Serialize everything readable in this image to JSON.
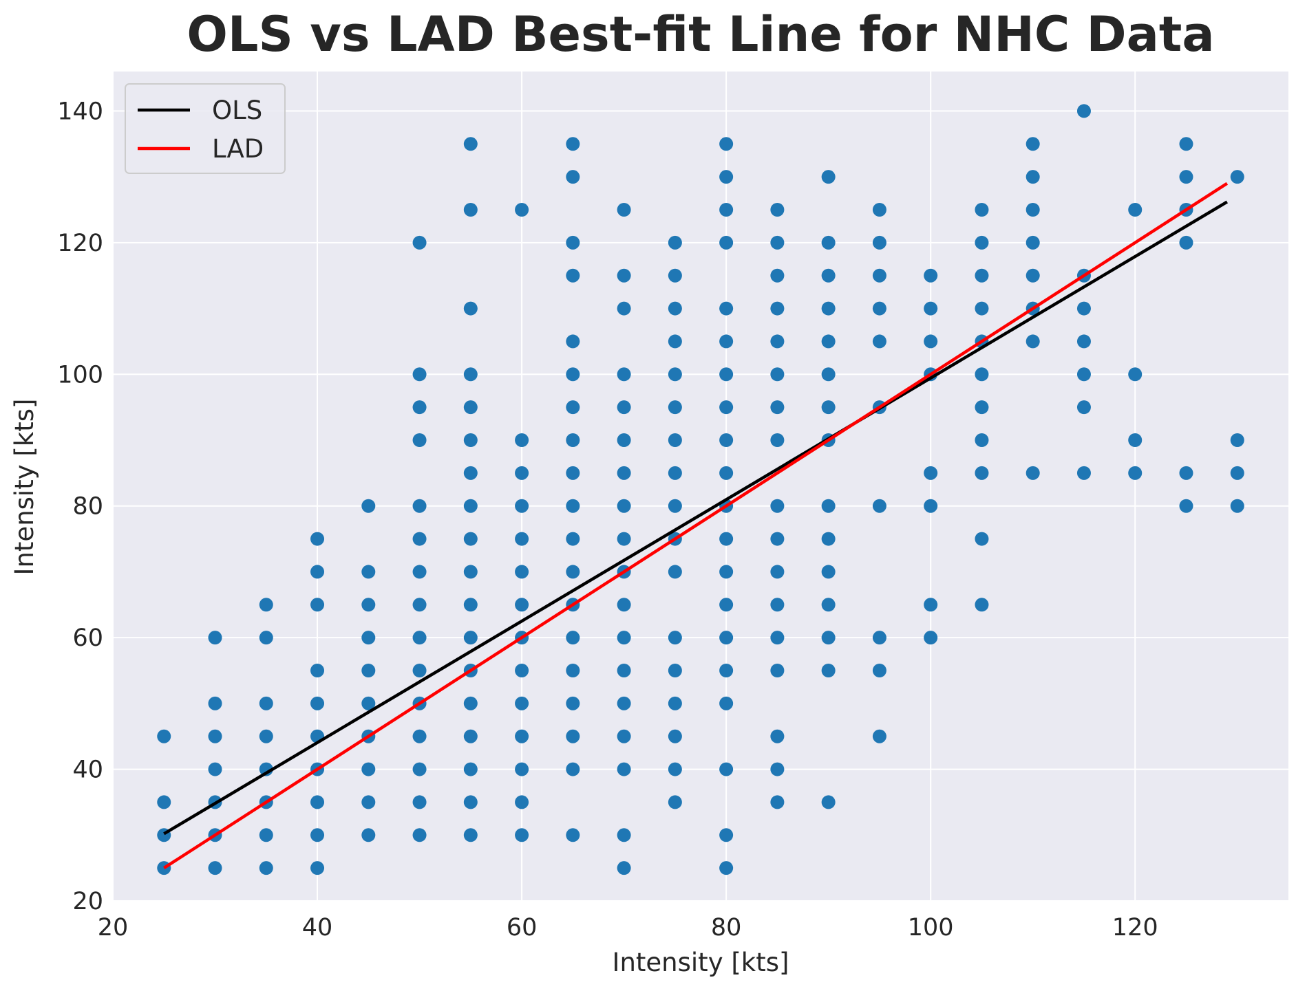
{
  "chart_data": {
    "type": "scatter",
    "title": "OLS vs LAD Best-fit Line for NHC Data",
    "xlabel": "Intensity [kts]",
    "ylabel": "Intensity [kts]",
    "xlim": [
      20,
      135
    ],
    "ylim": [
      20,
      146
    ],
    "x_ticks": [
      20,
      40,
      60,
      80,
      100,
      120
    ],
    "y_ticks": [
      20,
      40,
      60,
      80,
      100,
      120,
      140
    ],
    "grid": true,
    "legend_position": "top-left",
    "colors": {
      "background": "#eaeaf2",
      "grid": "#ffffff",
      "points": "#1f77b4",
      "ols": "#000000",
      "lad": "#ff0000"
    },
    "lines": [
      {
        "name": "OLS",
        "x": [
          25,
          129
        ],
        "y": [
          30.2,
          126.2
        ]
      },
      {
        "name": "LAD",
        "x": [
          25,
          129
        ],
        "y": [
          25,
          129
        ]
      }
    ],
    "points": [
      [
        25,
        25
      ],
      [
        25,
        30
      ],
      [
        25,
        35
      ],
      [
        25,
        45
      ],
      [
        30,
        25
      ],
      [
        30,
        30
      ],
      [
        30,
        35
      ],
      [
        30,
        40
      ],
      [
        30,
        45
      ],
      [
        30,
        50
      ],
      [
        30,
        60
      ],
      [
        35,
        25
      ],
      [
        35,
        30
      ],
      [
        35,
        35
      ],
      [
        35,
        40
      ],
      [
        35,
        45
      ],
      [
        35,
        50
      ],
      [
        35,
        60
      ],
      [
        35,
        65
      ],
      [
        40,
        25
      ],
      [
        40,
        30
      ],
      [
        40,
        35
      ],
      [
        40,
        40
      ],
      [
        40,
        45
      ],
      [
        40,
        50
      ],
      [
        40,
        55
      ],
      [
        40,
        65
      ],
      [
        40,
        70
      ],
      [
        40,
        75
      ],
      [
        45,
        30
      ],
      [
        45,
        35
      ],
      [
        45,
        40
      ],
      [
        45,
        45
      ],
      [
        45,
        50
      ],
      [
        45,
        55
      ],
      [
        45,
        60
      ],
      [
        45,
        65
      ],
      [
        45,
        70
      ],
      [
        45,
        80
      ],
      [
        50,
        30
      ],
      [
        50,
        35
      ],
      [
        50,
        40
      ],
      [
        50,
        45
      ],
      [
        50,
        50
      ],
      [
        50,
        55
      ],
      [
        50,
        60
      ],
      [
        50,
        65
      ],
      [
        50,
        70
      ],
      [
        50,
        75
      ],
      [
        50,
        80
      ],
      [
        50,
        90
      ],
      [
        50,
        95
      ],
      [
        50,
        100
      ],
      [
        50,
        120
      ],
      [
        55,
        30
      ],
      [
        55,
        35
      ],
      [
        55,
        40
      ],
      [
        55,
        45
      ],
      [
        55,
        50
      ],
      [
        55,
        55
      ],
      [
        55,
        60
      ],
      [
        55,
        65
      ],
      [
        55,
        70
      ],
      [
        55,
        75
      ],
      [
        55,
        80
      ],
      [
        55,
        85
      ],
      [
        55,
        90
      ],
      [
        55,
        95
      ],
      [
        55,
        100
      ],
      [
        55,
        110
      ],
      [
        55,
        125
      ],
      [
        55,
        135
      ],
      [
        60,
        30
      ],
      [
        60,
        35
      ],
      [
        60,
        40
      ],
      [
        60,
        45
      ],
      [
        60,
        50
      ],
      [
        60,
        55
      ],
      [
        60,
        60
      ],
      [
        60,
        65
      ],
      [
        60,
        70
      ],
      [
        60,
        75
      ],
      [
        60,
        80
      ],
      [
        60,
        85
      ],
      [
        60,
        90
      ],
      [
        60,
        125
      ],
      [
        65,
        30
      ],
      [
        65,
        40
      ],
      [
        65,
        45
      ],
      [
        65,
        50
      ],
      [
        65,
        55
      ],
      [
        65,
        60
      ],
      [
        65,
        65
      ],
      [
        65,
        70
      ],
      [
        65,
        75
      ],
      [
        65,
        80
      ],
      [
        65,
        85
      ],
      [
        65,
        90
      ],
      [
        65,
        95
      ],
      [
        65,
        100
      ],
      [
        65,
        105
      ],
      [
        65,
        115
      ],
      [
        65,
        120
      ],
      [
        65,
        130
      ],
      [
        65,
        135
      ],
      [
        70,
        25
      ],
      [
        70,
        30
      ],
      [
        70,
        40
      ],
      [
        70,
        45
      ],
      [
        70,
        50
      ],
      [
        70,
        55
      ],
      [
        70,
        60
      ],
      [
        70,
        65
      ],
      [
        70,
        70
      ],
      [
        70,
        75
      ],
      [
        70,
        80
      ],
      [
        70,
        85
      ],
      [
        70,
        90
      ],
      [
        70,
        95
      ],
      [
        70,
        100
      ],
      [
        70,
        110
      ],
      [
        70,
        115
      ],
      [
        70,
        125
      ],
      [
        75,
        35
      ],
      [
        75,
        40
      ],
      [
        75,
        45
      ],
      [
        75,
        50
      ],
      [
        75,
        55
      ],
      [
        75,
        60
      ],
      [
        75,
        70
      ],
      [
        75,
        75
      ],
      [
        75,
        80
      ],
      [
        75,
        85
      ],
      [
        75,
        90
      ],
      [
        75,
        95
      ],
      [
        75,
        100
      ],
      [
        75,
        105
      ],
      [
        75,
        110
      ],
      [
        75,
        115
      ],
      [
        75,
        120
      ],
      [
        80,
        25
      ],
      [
        80,
        30
      ],
      [
        80,
        40
      ],
      [
        80,
        50
      ],
      [
        80,
        55
      ],
      [
        80,
        60
      ],
      [
        80,
        65
      ],
      [
        80,
        70
      ],
      [
        80,
        75
      ],
      [
        80,
        80
      ],
      [
        80,
        85
      ],
      [
        80,
        90
      ],
      [
        80,
        95
      ],
      [
        80,
        100
      ],
      [
        80,
        105
      ],
      [
        80,
        110
      ],
      [
        80,
        120
      ],
      [
        80,
        125
      ],
      [
        80,
        130
      ],
      [
        80,
        135
      ],
      [
        85,
        35
      ],
      [
        85,
        40
      ],
      [
        85,
        45
      ],
      [
        85,
        55
      ],
      [
        85,
        60
      ],
      [
        85,
        65
      ],
      [
        85,
        70
      ],
      [
        85,
        75
      ],
      [
        85,
        80
      ],
      [
        85,
        90
      ],
      [
        85,
        95
      ],
      [
        85,
        100
      ],
      [
        85,
        105
      ],
      [
        85,
        110
      ],
      [
        85,
        115
      ],
      [
        85,
        120
      ],
      [
        85,
        125
      ],
      [
        90,
        35
      ],
      [
        90,
        55
      ],
      [
        90,
        60
      ],
      [
        90,
        65
      ],
      [
        90,
        70
      ],
      [
        90,
        75
      ],
      [
        90,
        80
      ],
      [
        90,
        90
      ],
      [
        90,
        95
      ],
      [
        90,
        100
      ],
      [
        90,
        105
      ],
      [
        90,
        110
      ],
      [
        90,
        115
      ],
      [
        90,
        120
      ],
      [
        90,
        130
      ],
      [
        95,
        45
      ],
      [
        95,
        55
      ],
      [
        95,
        60
      ],
      [
        95,
        80
      ],
      [
        95,
        95
      ],
      [
        95,
        105
      ],
      [
        95,
        110
      ],
      [
        95,
        115
      ],
      [
        95,
        120
      ],
      [
        95,
        125
      ],
      [
        100,
        60
      ],
      [
        100,
        65
      ],
      [
        100,
        80
      ],
      [
        100,
        85
      ],
      [
        100,
        100
      ],
      [
        100,
        105
      ],
      [
        100,
        110
      ],
      [
        100,
        115
      ],
      [
        105,
        65
      ],
      [
        105,
        75
      ],
      [
        105,
        85
      ],
      [
        105,
        90
      ],
      [
        105,
        95
      ],
      [
        105,
        100
      ],
      [
        105,
        105
      ],
      [
        105,
        110
      ],
      [
        105,
        115
      ],
      [
        105,
        120
      ],
      [
        105,
        125
      ],
      [
        110,
        85
      ],
      [
        110,
        105
      ],
      [
        110,
        110
      ],
      [
        110,
        115
      ],
      [
        110,
        120
      ],
      [
        110,
        125
      ],
      [
        110,
        130
      ],
      [
        110,
        135
      ],
      [
        115,
        85
      ],
      [
        115,
        95
      ],
      [
        115,
        100
      ],
      [
        115,
        105
      ],
      [
        115,
        110
      ],
      [
        115,
        115
      ],
      [
        115,
        140
      ],
      [
        120,
        85
      ],
      [
        120,
        90
      ],
      [
        120,
        100
      ],
      [
        120,
        125
      ],
      [
        125,
        80
      ],
      [
        125,
        85
      ],
      [
        125,
        120
      ],
      [
        125,
        125
      ],
      [
        125,
        130
      ],
      [
        125,
        135
      ],
      [
        130,
        80
      ],
      [
        130,
        85
      ],
      [
        130,
        90
      ],
      [
        130,
        130
      ]
    ]
  }
}
